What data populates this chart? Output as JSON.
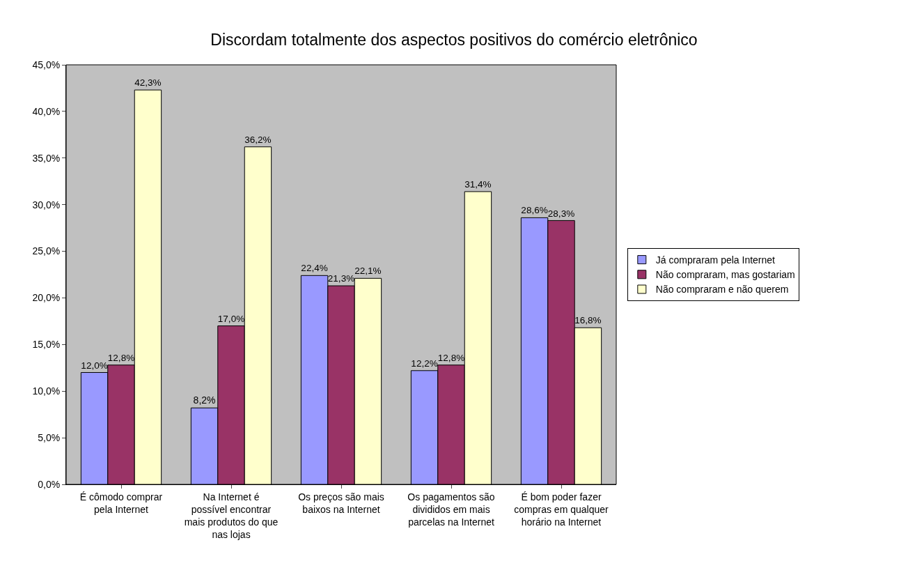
{
  "chart_data": {
    "type": "bar",
    "title": "Discordam totalmente dos aspectos positivos do comércio eletrônico",
    "categories": [
      "É cômodo comprar pela Internet",
      "Na Internet é possível encontrar mais produtos do que nas lojas",
      "Os preços são mais baixos na Internet",
      "Os pagamentos são divididos em mais parcelas na Internet",
      "É bom poder fazer compras em qualquer horário na Internet"
    ],
    "series": [
      {
        "name": "Já compraram pela Internet",
        "color": "#9999ff",
        "values": [
          12.0,
          8.2,
          22.4,
          12.2,
          28.6
        ],
        "value_labels": [
          "12,0%",
          "8,2%",
          "22,4%",
          "12,2%",
          "28,6%"
        ]
      },
      {
        "name": "Não compraram, mas gostariam",
        "color": "#993366",
        "values": [
          12.8,
          17.0,
          21.3,
          12.8,
          28.3
        ],
        "value_labels": [
          "12,8%",
          "17,0%",
          "21,3%",
          "12,8%",
          "28,3%"
        ]
      },
      {
        "name": "Não compraram e não querem",
        "color": "#ffffcc",
        "values": [
          42.3,
          36.2,
          22.1,
          31.4,
          16.8
        ],
        "value_labels": [
          "42,3%",
          "36,2%",
          "22,1%",
          "31,4%",
          "16,8%"
        ]
      }
    ],
    "ylim": [
      0,
      45
    ],
    "yticks": [
      {
        "value": 0,
        "label": "0,0%"
      },
      {
        "value": 5,
        "label": "5,0%"
      },
      {
        "value": 10,
        "label": "10,0%"
      },
      {
        "value": 15,
        "label": "15,0%"
      },
      {
        "value": 20,
        "label": "20,0%"
      },
      {
        "value": 25,
        "label": "25,0%"
      },
      {
        "value": 30,
        "label": "30,0%"
      },
      {
        "value": 35,
        "label": "35,0%"
      },
      {
        "value": 40,
        "label": "40,0%"
      },
      {
        "value": 45,
        "label": "45,0%"
      }
    ],
    "grid": false,
    "legend": "right"
  }
}
